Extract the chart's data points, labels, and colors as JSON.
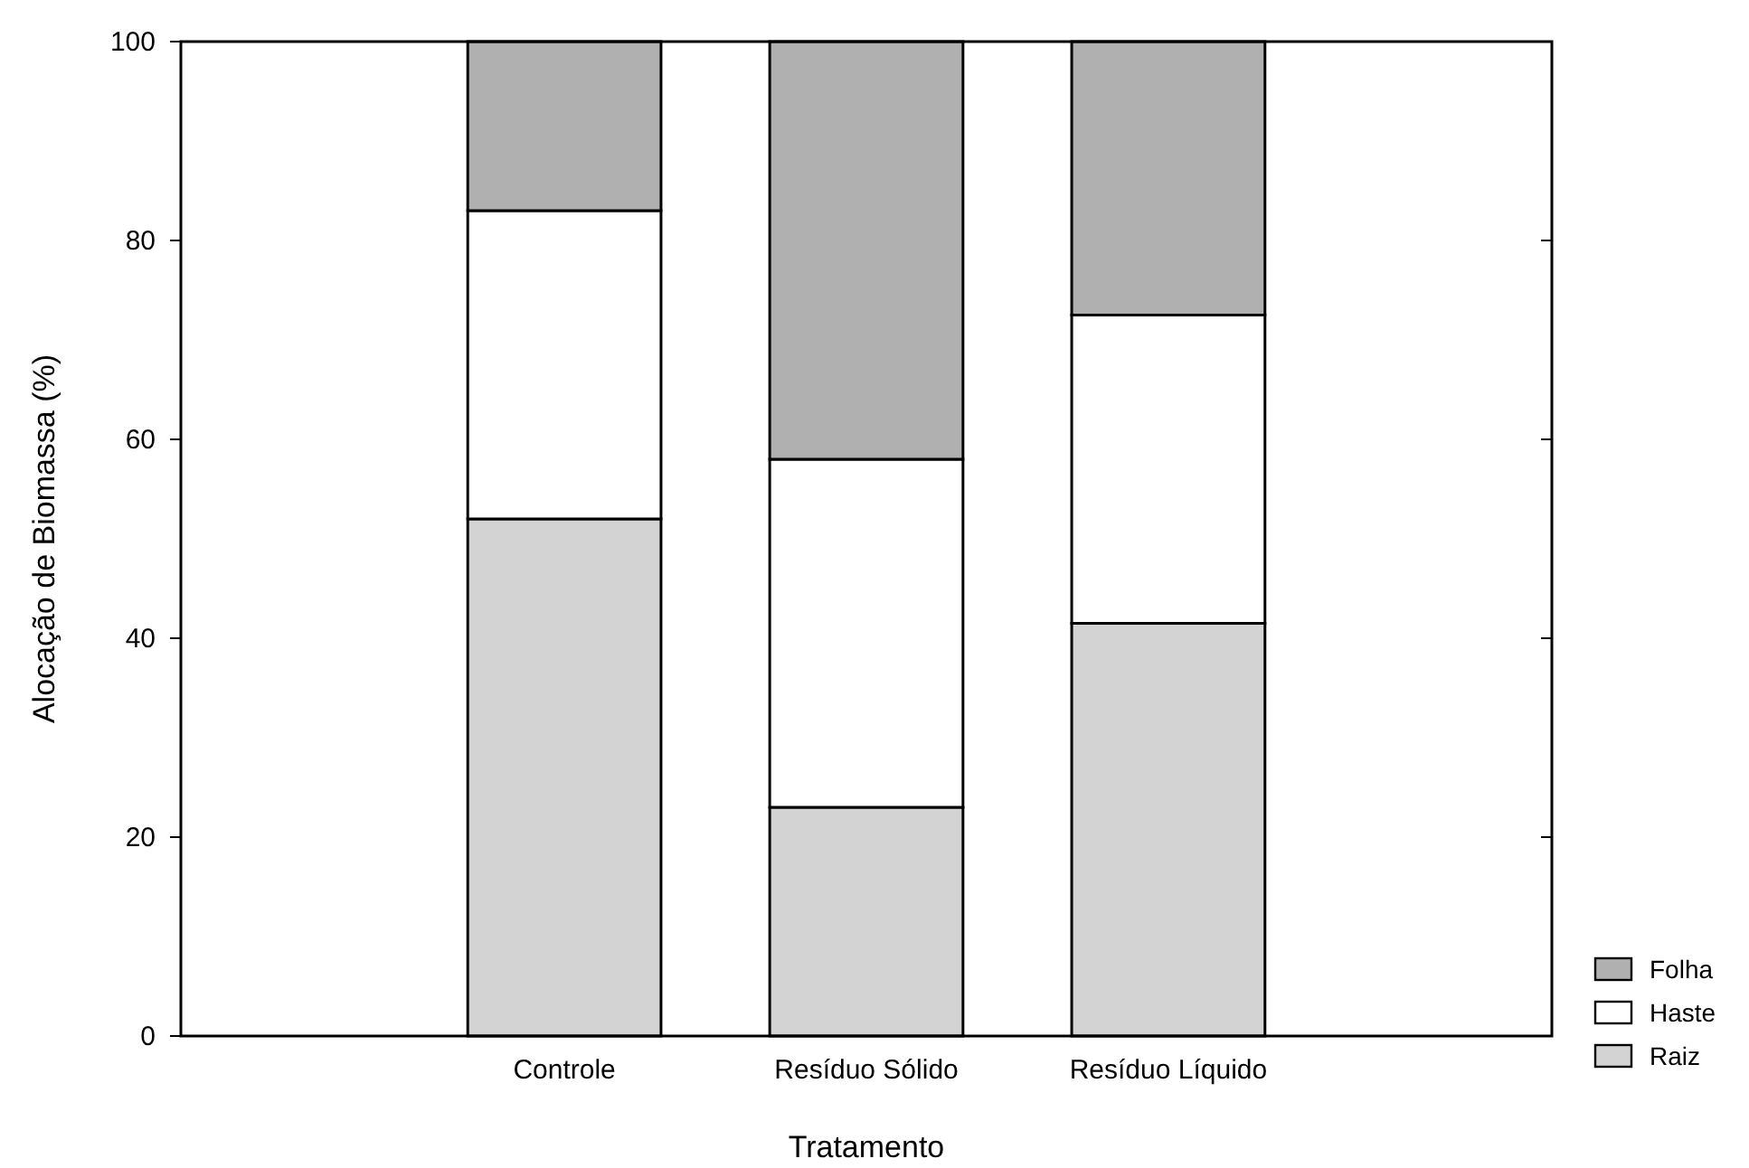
{
  "chart_data": {
    "type": "bar",
    "stacked": true,
    "xlabel": "Tratamento",
    "ylabel": "Alocação de Biomassa (%)",
    "categories": [
      "Controle",
      "Resíduo Sólido",
      "Resíduo Líquido"
    ],
    "series": [
      {
        "name": "Raiz",
        "color": "#d3d3d3",
        "values": [
          52,
          23,
          41.5
        ]
      },
      {
        "name": "Haste",
        "color": "#ffffff",
        "values": [
          31,
          35,
          31
        ]
      },
      {
        "name": "Folha",
        "color": "#b0b0b0",
        "values": [
          17,
          42,
          27.5
        ]
      }
    ],
    "ylim": [
      0,
      100
    ],
    "yticks": [
      0,
      20,
      40,
      60,
      80,
      100
    ],
    "grid": false,
    "legend": "bottom right"
  }
}
